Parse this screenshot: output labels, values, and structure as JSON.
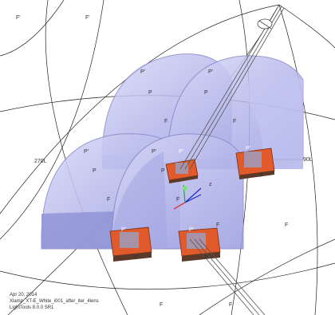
{
  "viewport": {
    "labels": {
      "f_prime": "F'",
      "f": "F",
      "p_prime": "P'",
      "p": "P",
      "left_angle": "270L",
      "right_angle": "90L",
      "axis_z": "z"
    }
  },
  "info": {
    "date": "Apr 20, 2014",
    "model_name": "Xlamp_XT-E_White_i001_after_iter_4lens",
    "software": "LightTools 8.0.0 SR1"
  },
  "colors": {
    "lens_fill": "#b7b9ec",
    "lens_edge": "#8789c8",
    "led_body": "#e05a2b",
    "led_base": "#5b3a2a",
    "ray": "#555555",
    "grid": "#222222"
  }
}
